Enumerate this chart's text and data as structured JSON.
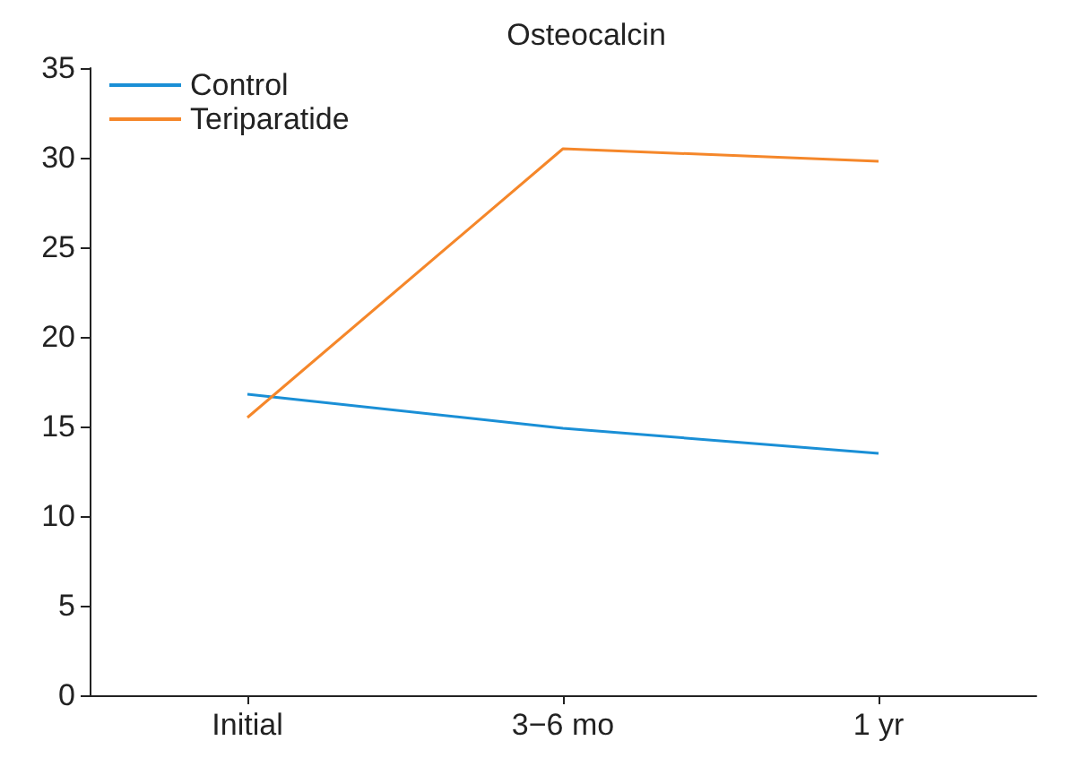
{
  "chart_data": {
    "type": "line",
    "title": "Osteocalcin",
    "categories": [
      "Initial",
      "3−6 mo",
      "1 yr"
    ],
    "series": [
      {
        "name": "Control",
        "color": "#1a8fd6",
        "values": [
          16.8,
          14.9,
          13.5
        ]
      },
      {
        "name": "Teriparatide",
        "color": "#f5872a",
        "values": [
          15.5,
          30.5,
          29.8
        ]
      }
    ],
    "ylim": [
      0,
      35
    ],
    "yticks": [
      0,
      5,
      10,
      15,
      20,
      25,
      30,
      35
    ],
    "grid": false,
    "legend": "top left",
    "marker": "none",
    "line_style": "solid"
  }
}
